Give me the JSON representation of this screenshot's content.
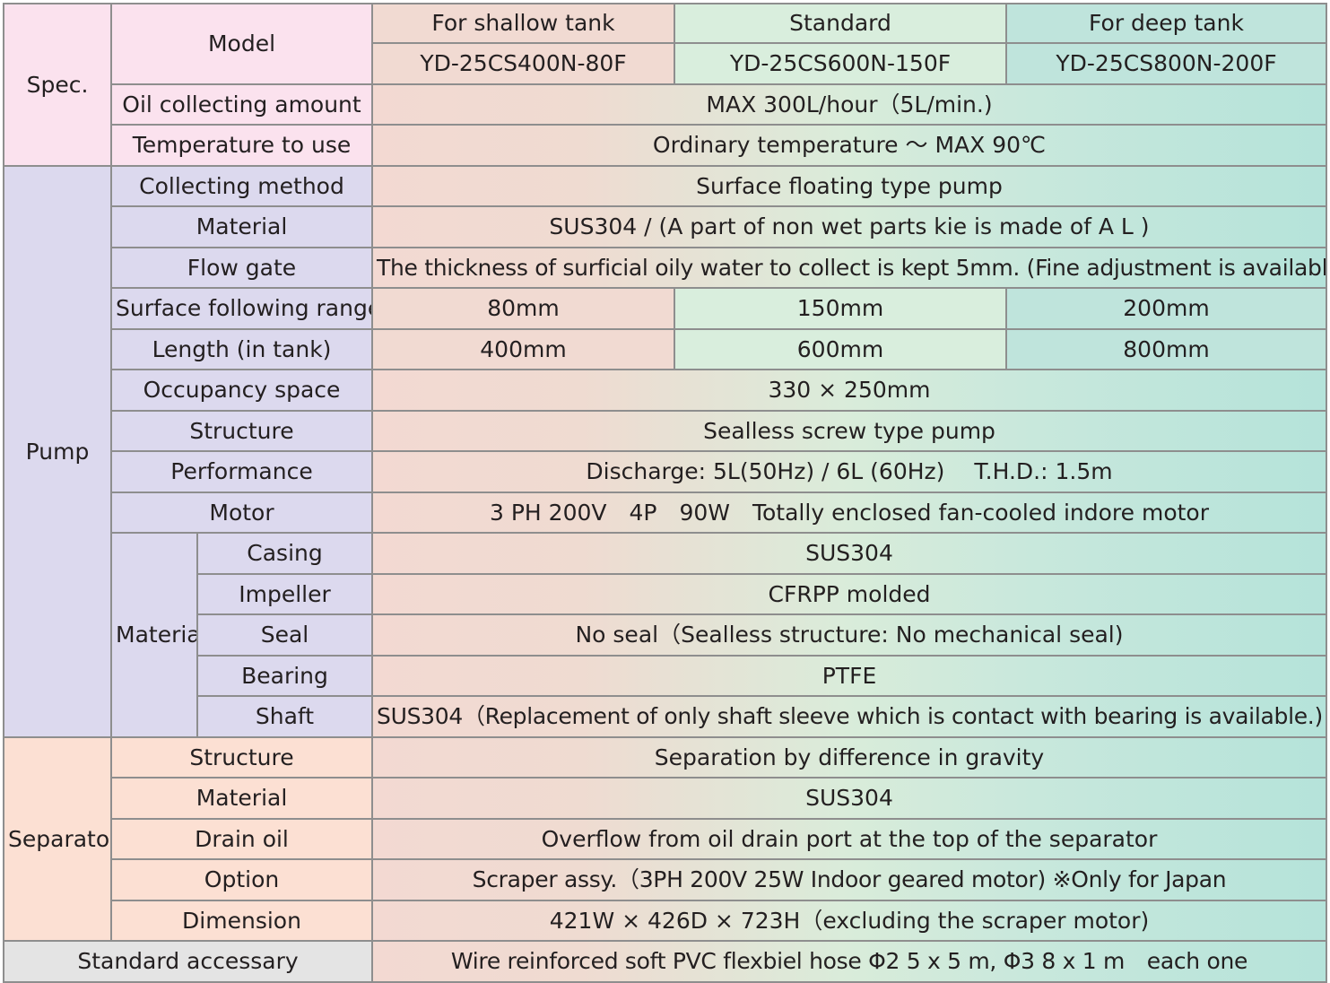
{
  "groups": {
    "spec": "Spec.",
    "pump": "Pump",
    "separator": "Separator",
    "accessory": "Standard accessary"
  },
  "columns": {
    "types": [
      "For shallow tank",
      "Standard",
      "For deep tank"
    ],
    "models": [
      "YD-25CS400N-80F",
      "YD-25CS600N-150F",
      "YD-25CS800N-200F"
    ]
  },
  "spec": {
    "model_label": "Model",
    "oil_label": "Oil collecting amount",
    "oil_value": "MAX 300L/hour（5L/min.)",
    "temp_label": "Temperature to use",
    "temp_value": "Ordinary temperature ～ MAX 90℃"
  },
  "pump": {
    "collecting_label": "Collecting method",
    "collecting_value": "Surface floating type pump",
    "material_label": "Material",
    "material_value": "SUS304 / (A part of non wet parts kie is made of A L )",
    "flowgate_label": "Flow gate",
    "flowgate_value": "The thickness of surficial oily water to collect is kept  5mm. (Fine adjustment is available.)",
    "range_label": "Surface following range",
    "range_values": [
      "80mm",
      "150mm",
      "200mm"
    ],
    "length_label": "Length (in tank)",
    "length_values": [
      "400mm",
      "600mm",
      "800mm"
    ],
    "occupancy_label": "Occupancy space",
    "occupancy_value": "330 × 250mm",
    "structure_label": "Structure",
    "structure_value": "Sealless screw type pump",
    "performance_label": "Performance",
    "performance_value": "Discharge: 5L(50Hz) / 6L (60Hz)　 T.H.D.: 1.5m",
    "motor_label": "Motor",
    "motor_value": "3 PH  200V　4P　90W　Totally enclosed fan-cooled indore motor",
    "sub_material_label": "Material",
    "casing_label": "Casing",
    "casing_value": "SUS304",
    "impeller_label": "Impeller",
    "impeller_value": "CFRPP molded",
    "seal_label": "Seal",
    "seal_value": "No seal（Sealless structure: No mechanical seal)",
    "bearing_label": "Bearing",
    "bearing_value": "PTFE",
    "shaft_label": "Shaft",
    "shaft_value": "SUS304（Replacement of only shaft sleeve which is contact with bearing is available.)"
  },
  "separator": {
    "structure_label": "Structure",
    "structure_value": "Separation by difference in gravity",
    "material_label": "Material",
    "material_value": "SUS304",
    "drain_label": "Drain oil",
    "drain_value": "Overflow from oil drain port at the top of the separator",
    "option_label": "Option",
    "option_value": "Scraper assy.（3PH 200V 25W  Indoor geared motor) ※Only for Japan",
    "dimension_label": "Dimension",
    "dimension_value": "421W × 426D × 723H（excluding the scraper motor)"
  },
  "accessory": {
    "value": "Wire reinforced soft PVC flexbiel hose  Φ2 5 x 5 m, Φ3 8 x 1 m　each one"
  }
}
